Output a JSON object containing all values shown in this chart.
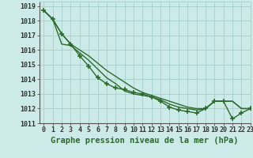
{
  "title": "Graphe pression niveau de la mer (hPa)",
  "bg_color": "#cceae7",
  "grid_color": "#aad4d0",
  "line_color": "#2d6a2d",
  "xlim": [
    -0.5,
    23
  ],
  "ylim": [
    1011,
    1019.3
  ],
  "ytick_values": [
    1011,
    1012,
    1013,
    1014,
    1015,
    1016,
    1017,
    1018,
    1019
  ],
  "xtick_labels": [
    "0",
    "1",
    "2",
    "3",
    "4",
    "5",
    "6",
    "7",
    "8",
    "9",
    "10",
    "11",
    "12",
    "13",
    "14",
    "15",
    "16",
    "17",
    "18",
    "19",
    "20",
    "21",
    "22",
    "23"
  ],
  "series": [
    [
      1018.7,
      1018.1,
      1017.1,
      1016.4,
      1015.6,
      1014.9,
      1014.1,
      1013.7,
      1013.4,
      1013.3,
      1013.1,
      1013.0,
      1012.8,
      1012.5,
      1012.1,
      1011.9,
      1011.8,
      1011.7,
      1012.0,
      1012.5,
      1012.5,
      1011.3,
      1011.7,
      1012.0
    ],
    [
      1018.7,
      1018.1,
      1016.4,
      1016.3,
      1015.8,
      1015.3,
      1014.7,
      1014.1,
      1013.7,
      1013.2,
      1013.0,
      1012.9,
      1012.8,
      1012.6,
      1012.3,
      1012.1,
      1012.0,
      1011.9,
      1012.0,
      1012.5,
      1012.5,
      1012.5,
      1012.0,
      1012.0
    ],
    [
      1018.7,
      1018.1,
      1017.1,
      1016.4,
      1016.0,
      1015.6,
      1015.1,
      1014.6,
      1014.2,
      1013.8,
      1013.4,
      1013.1,
      1012.9,
      1012.7,
      1012.5,
      1012.3,
      1012.1,
      1012.0,
      1012.0,
      1012.5,
      1012.5,
      1012.5,
      1012.0,
      1012.0
    ]
  ],
  "show_markers": [
    true,
    false,
    false
  ],
  "marker": "+",
  "marker_size": 4.5,
  "linewidth": 1.0,
  "title_fontsize": 7.5,
  "tick_fontsize": 6.0
}
